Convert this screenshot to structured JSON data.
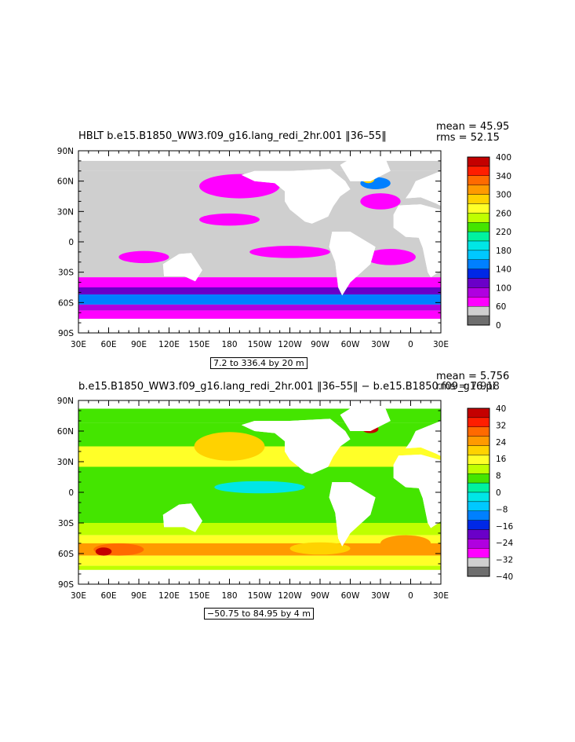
{
  "charts": [
    {
      "title": "HBLT b.e15.B1850_WW3.f09_g16.lang_redi_2hr.001 ‖36–55‖",
      "stats": {
        "mean": "mean = 45.95",
        "rms": "rms = 52.15"
      },
      "range_label": "7.2 to 336.4 by 20 m"
    },
    {
      "title": "b.e15.B1850_WW3.f09_g16.lang_redi_2hr.001 ‖36–55‖ − b.e15.B1850.f09_g16.pi",
      "stats": {
        "mean": "mean = 5.756",
        "rms": "rms = 7.918"
      },
      "range_label": "−50.75 to 84.95 by 4 m"
    }
  ],
  "chart_data": [
    {
      "type": "heatmap",
      "title": "HBLT b.e15.B1850_WW3.f09_g16.lang_redi_2hr.001 ‖36–55‖",
      "mean": 45.95,
      "rms": 52.15,
      "xticks": [
        "30E",
        "60E",
        "90E",
        "120E",
        "150E",
        "180",
        "150W",
        "120W",
        "90W",
        "60W",
        "30W",
        "0",
        "30E"
      ],
      "yticks": [
        "90N",
        "60N",
        "30N",
        "0",
        "30S",
        "60S",
        "90S"
      ],
      "colorbar_labels": [
        "400",
        "340",
        "300",
        "260",
        "220",
        "180",
        "140",
        "100",
        "60",
        "0"
      ],
      "colorbar_colors": [
        "#c40000",
        "#ff1e00",
        "#ff6a00",
        "#ff9a00",
        "#ffd200",
        "#ffff28",
        "#bfff00",
        "#44e500",
        "#00f2a0",
        "#00e6e6",
        "#00c8ff",
        "#0080ff",
        "#0028e6",
        "#6a00c8",
        "#b000e0",
        "#ff00ff",
        "#cfcfcf",
        "#6e6e6e"
      ],
      "zlim": [
        0,
        400
      ]
    },
    {
      "type": "heatmap",
      "title": "b.e15.B1850_WW3.f09_g16.lang_redi_2hr.001 ‖36–55‖ − b.e15.B1850.f09_g16.pi",
      "mean": 5.756,
      "rms": 7.918,
      "xticks": [
        "30E",
        "60E",
        "90E",
        "120E",
        "150E",
        "180",
        "150W",
        "120W",
        "90W",
        "60W",
        "30W",
        "0",
        "30E"
      ],
      "yticks": [
        "90N",
        "60N",
        "30N",
        "0",
        "30S",
        "60S",
        "90S"
      ],
      "colorbar_labels": [
        "40",
        "32",
        "24",
        "16",
        "8",
        "0",
        "−8",
        "−16",
        "−24",
        "−32",
        "−40"
      ],
      "colorbar_colors": [
        "#c40000",
        "#ff1e00",
        "#ff6a00",
        "#ff9a00",
        "#ffd200",
        "#ffff28",
        "#bfff00",
        "#44e500",
        "#00f2a0",
        "#00e6e6",
        "#00c8ff",
        "#0080ff",
        "#0028e6",
        "#6a00c8",
        "#b000e0",
        "#ff00ff",
        "#cfcfcf",
        "#6e6e6e"
      ],
      "zlim": [
        -40,
        40
      ]
    }
  ]
}
